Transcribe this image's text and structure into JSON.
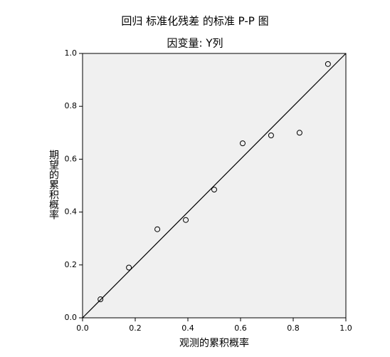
{
  "chart_data": {
    "type": "scatter",
    "title": "回归 标准化残差 的标准 P-P 图",
    "subtitle": "因变量: Y列",
    "x_label": "观测的累积概率",
    "y_label": "期望的累积概率",
    "x": [
      0.068,
      0.176,
      0.284,
      0.392,
      0.5,
      0.608,
      0.716,
      0.824,
      0.932
    ],
    "values": [
      0.07,
      0.19,
      0.335,
      0.37,
      0.485,
      0.66,
      0.69,
      0.7,
      0.96
    ],
    "xlim": [
      0,
      1
    ],
    "ylim": [
      0,
      1
    ],
    "xticks": [
      {
        "value": 0,
        "label": "0.0"
      },
      0.2,
      0.4,
      0.6,
      0.8,
      {
        "value": 1,
        "label": "1.0"
      }
    ],
    "yticks": [
      {
        "value": 0,
        "label": "0.0"
      },
      0.2,
      0.4,
      0.6,
      0.8,
      {
        "value": 1,
        "label": "1.0"
      }
    ],
    "color": "#000000",
    "background": "#f0f0f0"
  }
}
